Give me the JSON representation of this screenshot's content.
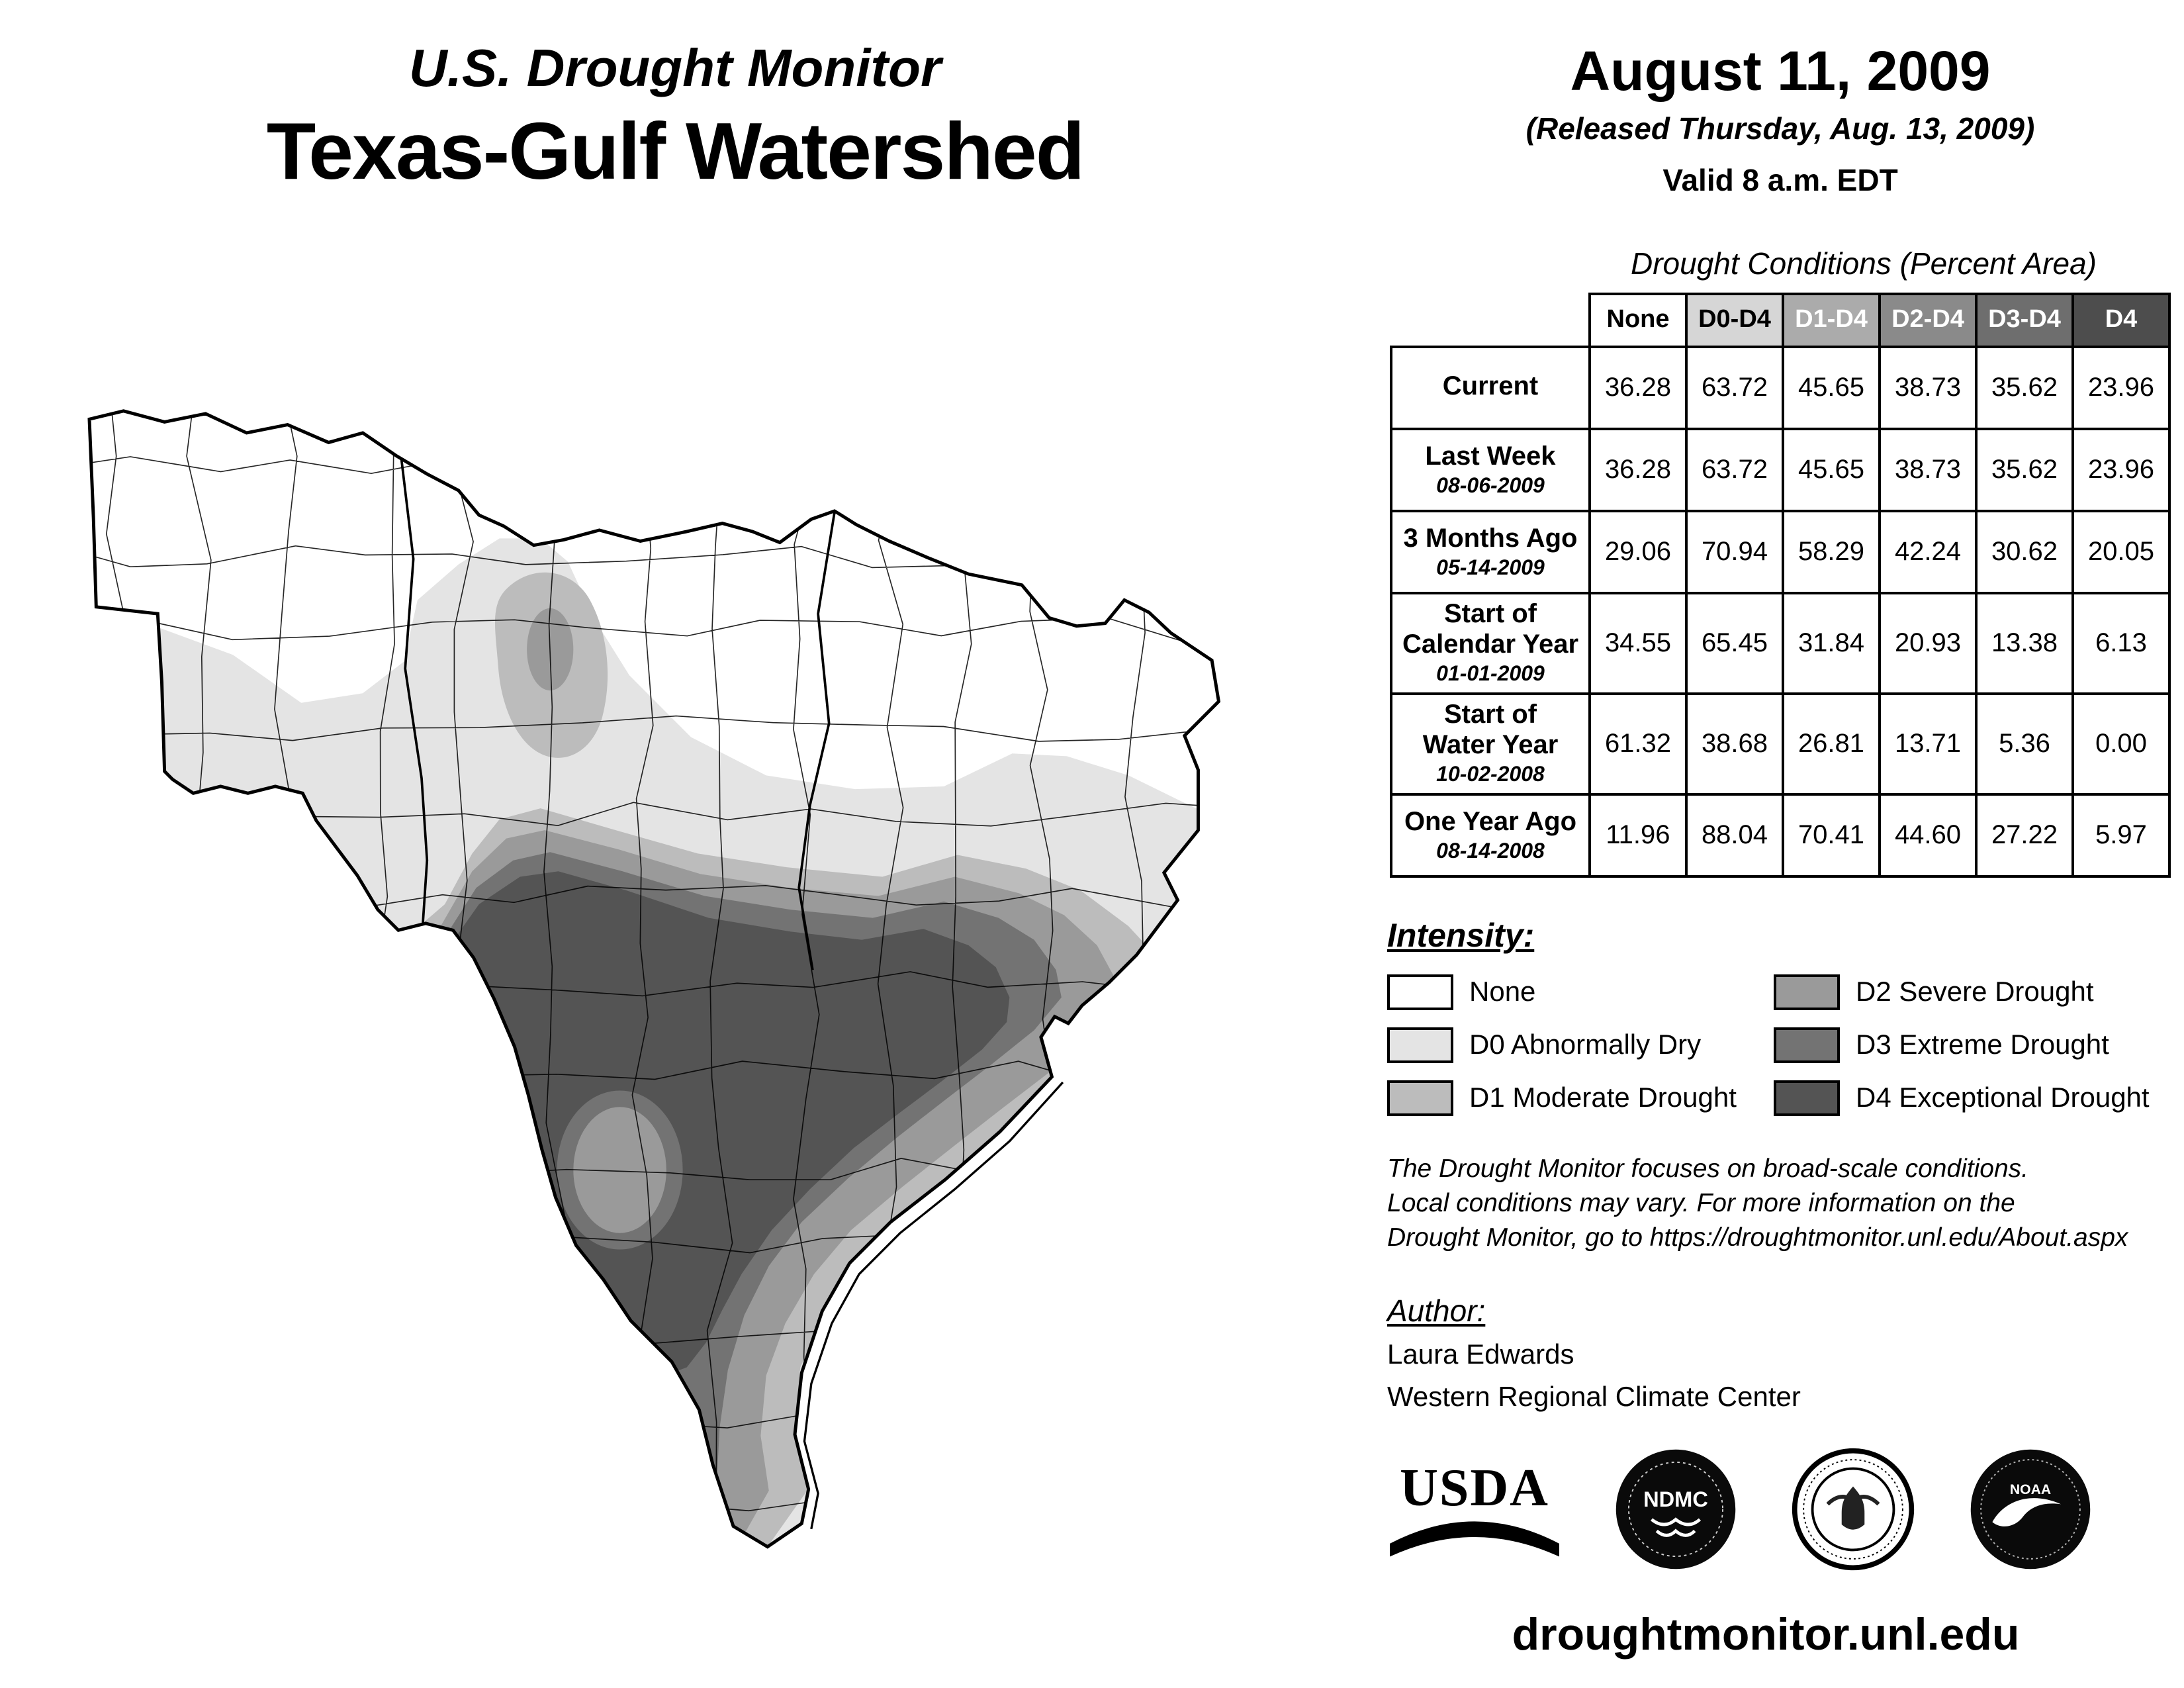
{
  "title": {
    "line1": "U.S. Drought Monitor",
    "line2": "Texas-Gulf Watershed"
  },
  "date_block": {
    "date": "August 11, 2009",
    "released": "(Released Thursday, Aug. 13, 2009)",
    "valid": "Valid 8 a.m. EDT"
  },
  "table": {
    "caption": "Drought Conditions (Percent Area)",
    "columns": [
      "None",
      "D0-D4",
      "D1-D4",
      "D2-D4",
      "D3-D4",
      "D4"
    ],
    "header_bg": [
      "#ffffff",
      "#d6d6d6",
      "#ababab",
      "#8a8a8a",
      "#6e6e6e",
      "#4d4d4d"
    ],
    "header_fg": [
      "#000000",
      "#000000",
      "#ffffff",
      "#ffffff",
      "#ffffff",
      "#ffffff"
    ],
    "rows": [
      {
        "label": "Current",
        "sublabel": "",
        "values": [
          "36.28",
          "63.72",
          "45.65",
          "38.73",
          "35.62",
          "23.96"
        ]
      },
      {
        "label": "Last Week",
        "sublabel": "08-06-2009",
        "values": [
          "36.28",
          "63.72",
          "45.65",
          "38.73",
          "35.62",
          "23.96"
        ]
      },
      {
        "label": "3 Months Ago",
        "sublabel": "05-14-2009",
        "values": [
          "29.06",
          "70.94",
          "58.29",
          "42.24",
          "30.62",
          "20.05"
        ]
      },
      {
        "label": "Start of\nCalendar Year",
        "sublabel": "01-01-2009",
        "values": [
          "34.55",
          "65.45",
          "31.84",
          "20.93",
          "13.38",
          "6.13"
        ]
      },
      {
        "label": "Start of\nWater Year",
        "sublabel": "10-02-2008",
        "values": [
          "61.32",
          "38.68",
          "26.81",
          "13.71",
          "5.36",
          "0.00"
        ]
      },
      {
        "label": "One Year Ago",
        "sublabel": "08-14-2008",
        "values": [
          "11.96",
          "88.04",
          "70.41",
          "44.60",
          "27.22",
          "5.97"
        ]
      }
    ]
  },
  "legend": {
    "heading": "Intensity:",
    "items": [
      {
        "label": "None",
        "color": "#ffffff"
      },
      {
        "label": "D0 Abnormally Dry",
        "color": "#e4e4e4"
      },
      {
        "label": "D1 Moderate Drought",
        "color": "#bcbcbc"
      },
      {
        "label": "D2 Severe Drought",
        "color": "#9a9a9a"
      },
      {
        "label": "D3 Extreme Drought",
        "color": "#737373"
      },
      {
        "label": "D4 Exceptional Drought",
        "color": "#545454"
      }
    ]
  },
  "disclaimer": {
    "lines": [
      "The Drought Monitor focuses on broad-scale conditions.",
      "Local conditions may vary. For more information on the",
      "Drought Monitor, go to https://droughtmonitor.unl.edu/About.aspx"
    ]
  },
  "author": {
    "heading": "Author:",
    "name": "Laura Edwards",
    "org": "Western Regional Climate Center"
  },
  "logos": [
    {
      "name": "USDA",
      "text": "USDA"
    },
    {
      "name": "National Drought Mitigation Center",
      "text": "NDMC"
    },
    {
      "name": "U.S. Department of Commerce"
    },
    {
      "name": "NOAA",
      "text": "NOAA"
    }
  ],
  "footer": {
    "url": "droughtmonitor.unl.edu"
  }
}
